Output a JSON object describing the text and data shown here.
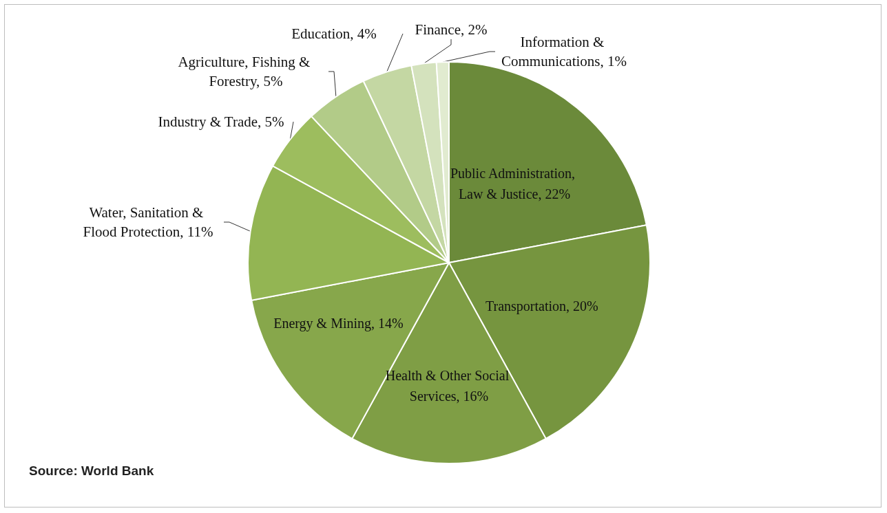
{
  "chart_data": {
    "type": "pie",
    "categories": [
      "Public Administration, Law & Justice",
      "Transportation",
      "Health & Other Social Services",
      "Energy & Mining",
      "Water, Sanitation & Flood Protection",
      "Industry & Trade",
      "Agriculture, Fishing & Forestry",
      "Education",
      "Finance",
      "Information & Communications"
    ],
    "values": [
      22,
      20,
      16,
      14,
      11,
      5,
      5,
      4,
      2,
      1
    ],
    "value_labels": [
      "22%",
      "20%",
      "16%",
      "14%",
      "11%",
      "5%",
      "5%",
      "4%",
      "2%",
      "1%"
    ],
    "colors": [
      "#6b8a3a",
      "#76953f",
      "#7f9e45",
      "#87a74b",
      "#93b553",
      "#9dbd5e",
      "#b2cb88",
      "#c4d7a3",
      "#d4e2bd",
      "#e1ebd0"
    ],
    "annotations": [
      "Source: World Bank"
    ],
    "legend": false
  }
}
